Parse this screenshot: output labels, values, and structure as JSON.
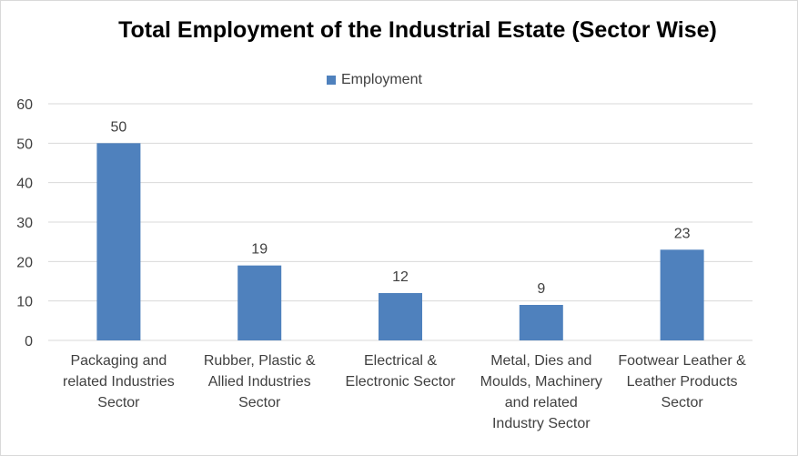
{
  "chart_data": {
    "type": "bar",
    "title": "Total Employment of the Industrial Estate (Sector Wise)",
    "xlabel": "",
    "ylabel": "",
    "ylim": [
      0,
      60
    ],
    "yticks": [
      0,
      10,
      20,
      30,
      40,
      50,
      60
    ],
    "grid": true,
    "legend_position": "top",
    "categories": [
      [
        "Packaging and",
        "related Industries",
        "Sector"
      ],
      [
        "Rubber, Plastic &",
        "Allied Industries",
        "Sector"
      ],
      [
        "Electrical &",
        "Electronic Sector"
      ],
      [
        "Metal, Dies and",
        "Moulds, Machinery",
        "and related",
        "Industry Sector"
      ],
      [
        "Footwear Leather &",
        "Leather Products",
        "Sector"
      ]
    ],
    "series": [
      {
        "name": "Employment",
        "values": [
          50,
          19,
          12,
          9,
          23
        ],
        "color": "#4f81bd"
      }
    ]
  }
}
